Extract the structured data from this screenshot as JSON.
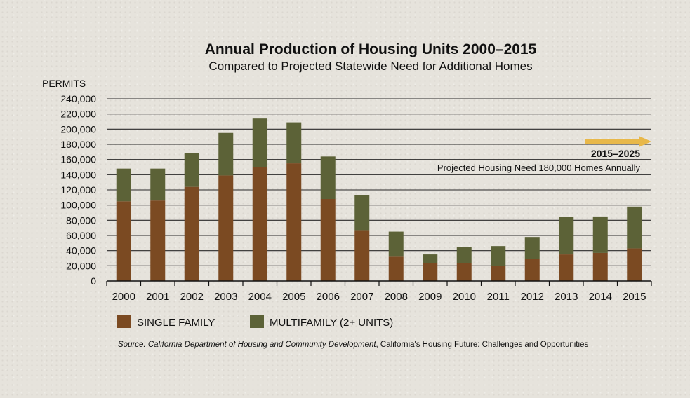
{
  "chart_data": {
    "type": "bar",
    "stacked": true,
    "title": "Annual Production of Housing Units 2000–2015",
    "subtitle": "Compared to Projected Statewide Need for Additional Homes",
    "ylabel": "PERMITS",
    "ylim": [
      0,
      240000
    ],
    "yticks": [
      "0",
      "20,000",
      "40,000",
      "60,000",
      "80,000",
      "100,000",
      "120,000",
      "140,000",
      "160,000",
      "180,000",
      "200,000",
      "220,000",
      "240,000"
    ],
    "ytick_values": [
      0,
      20000,
      40000,
      60000,
      80000,
      100000,
      120000,
      140000,
      160000,
      180000,
      200000,
      220000,
      240000
    ],
    "categories": [
      "2000",
      "2001",
      "2002",
      "2003",
      "2004",
      "2005",
      "2006",
      "2007",
      "2008",
      "2009",
      "2010",
      "2011",
      "2012",
      "2013",
      "2014",
      "2015"
    ],
    "series": [
      {
        "name": "SINGLE FAMILY",
        "color": "#7b4a22",
        "values": [
          105000,
          106000,
          124000,
          139000,
          150000,
          155000,
          108000,
          67000,
          32000,
          24000,
          24000,
          20000,
          29000,
          35000,
          37000,
          43000
        ]
      },
      {
        "name": "MULTIFAMILY (2+ UNITS)",
        "color": "#5c6237",
        "values": [
          43000,
          42000,
          44000,
          56000,
          64000,
          54000,
          56000,
          46000,
          33000,
          11000,
          21000,
          26000,
          29000,
          49000,
          48000,
          55000
        ]
      }
    ],
    "grid": true,
    "legend": "bottom-left",
    "annotation": {
      "years": "2015–2025",
      "text": "Projected Housing Need 180,000 Homes Annually",
      "value": 180000,
      "arrow_color": "#e8b84a"
    }
  },
  "source": {
    "italic": "Source: California Department of Housing and Community Development",
    "plain": ", California's Housing Future: Challenges and Opportunities"
  }
}
